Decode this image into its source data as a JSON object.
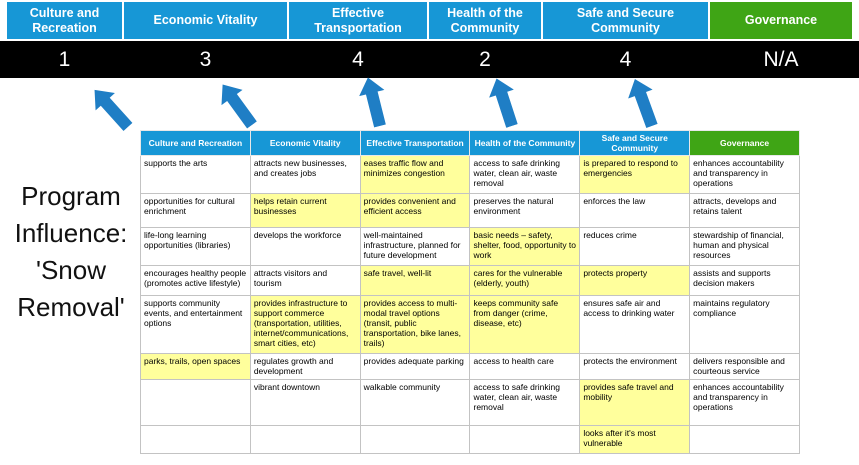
{
  "slide": {
    "program_label": "Program Influence: 'Snow Removal'"
  },
  "scoreboard": {
    "columns": [
      {
        "label": "Culture and Recreation",
        "score": "1",
        "theme": "blue"
      },
      {
        "label": "Economic Vitality",
        "score": "3",
        "theme": "blue"
      },
      {
        "label": "Effective Transportation",
        "score": "4",
        "theme": "blue"
      },
      {
        "label": "Health of the Community",
        "score": "2",
        "theme": "blue"
      },
      {
        "label": "Safe and Secure Community",
        "score": "4",
        "theme": "blue"
      },
      {
        "label": "Governance",
        "score": "N/A",
        "theme": "green"
      }
    ]
  },
  "matrix": {
    "headers": [
      {
        "label": "Culture and Recreation",
        "theme": "blue"
      },
      {
        "label": "Economic Vitality",
        "theme": "blue"
      },
      {
        "label": "Effective Transportation",
        "theme": "blue"
      },
      {
        "label": "Health of the Community",
        "theme": "blue"
      },
      {
        "label": "Safe and Secure Community",
        "theme": "blue"
      },
      {
        "label": "Governance",
        "theme": "green"
      }
    ],
    "rows": [
      {
        "cells": [
          {
            "text": "supports the arts",
            "highlight": false
          },
          {
            "text": "attracts new businesses, and creates jobs",
            "highlight": false
          },
          {
            "text": "eases traffic flow and minimizes congestion",
            "highlight": true
          },
          {
            "text": "access to safe drinking water, clean air, waste removal",
            "highlight": false
          },
          {
            "text": "is prepared to respond to emergencies",
            "highlight": true
          },
          {
            "text": "enhances accountability and transparency in operations",
            "highlight": false
          }
        ]
      },
      {
        "cells": [
          {
            "text": "opportunities for cultural enrichment",
            "highlight": false
          },
          {
            "text": "helps retain current businesses",
            "highlight": true
          },
          {
            "text": "provides convenient and efficient access",
            "highlight": true
          },
          {
            "text": "preserves the natural environment",
            "highlight": false
          },
          {
            "text": "enforces the law",
            "highlight": false
          },
          {
            "text": "attracts, develops and retains talent",
            "highlight": false
          }
        ]
      },
      {
        "cells": [
          {
            "text": "life-long learning opportunities (libraries)",
            "highlight": false
          },
          {
            "text": "develops the workforce",
            "highlight": false
          },
          {
            "text": "well-maintained infrastructure, planned for future development",
            "highlight": false
          },
          {
            "text": "basic needs – safety, shelter, food, opportunity to work",
            "highlight": true
          },
          {
            "text": "reduces crime",
            "highlight": false
          },
          {
            "text": "stewardship of financial, human and physical resources",
            "highlight": false
          }
        ]
      },
      {
        "cells": [
          {
            "text": "encourages healthy people (promotes active lifestyle)",
            "highlight": false
          },
          {
            "text": "attracts visitors and tourism",
            "highlight": false
          },
          {
            "text": "safe travel, well-lit",
            "highlight": true
          },
          {
            "text": "cares for the vulnerable (elderly, youth)",
            "highlight": true
          },
          {
            "text": "protects property",
            "highlight": true
          },
          {
            "text": "assists and supports decision makers",
            "highlight": false
          }
        ]
      },
      {
        "cells": [
          {
            "text": "supports community events, and entertainment options",
            "highlight": false
          },
          {
            "text": "provides infrastructure to support commerce (transportation, utilities, internet/communications, smart cities, etc)",
            "highlight": true
          },
          {
            "text": "provides access to multi-modal travel options (transit, public transportation, bike lanes, trails)",
            "highlight": true
          },
          {
            "text": "keeps community safe from danger (crime, disease, etc)",
            "highlight": true
          },
          {
            "text": "ensures safe air and access to drinking water",
            "highlight": false
          },
          {
            "text": "maintains regulatory compliance",
            "highlight": false
          }
        ]
      },
      {
        "cells": [
          {
            "text": "parks, trails, open spaces",
            "highlight": true
          },
          {
            "text": "regulates growth and development",
            "highlight": false
          },
          {
            "text": "provides adequate parking",
            "highlight": false
          },
          {
            "text": "access to health care",
            "highlight": false
          },
          {
            "text": "protects the environment",
            "highlight": false
          },
          {
            "text": "delivers responsible and courteous service",
            "highlight": false
          }
        ]
      },
      {
        "cells": [
          {
            "text": "",
            "highlight": false
          },
          {
            "text": "vibrant downtown",
            "highlight": false
          },
          {
            "text": "walkable community",
            "highlight": false
          },
          {
            "text": "access to safe drinking water, clean air, waste removal",
            "highlight": false
          },
          {
            "text": "provides safe travel and mobility",
            "highlight": true
          },
          {
            "text": "enhances accountability and transparency in operations",
            "highlight": false
          }
        ]
      },
      {
        "cells": [
          {
            "text": "",
            "highlight": false
          },
          {
            "text": "",
            "highlight": false
          },
          {
            "text": "",
            "highlight": false
          },
          {
            "text": "",
            "highlight": false
          },
          {
            "text": "looks after it's most vulnerable",
            "highlight": true
          },
          {
            "text": "",
            "highlight": false
          }
        ]
      }
    ]
  },
  "colors": {
    "header_blue": "#1797d6",
    "header_green": "#3fa515",
    "score_bar_bg": "#000000",
    "highlight_yellow": "#ffff9c",
    "arrow_blue": "#1f7ec5"
  }
}
